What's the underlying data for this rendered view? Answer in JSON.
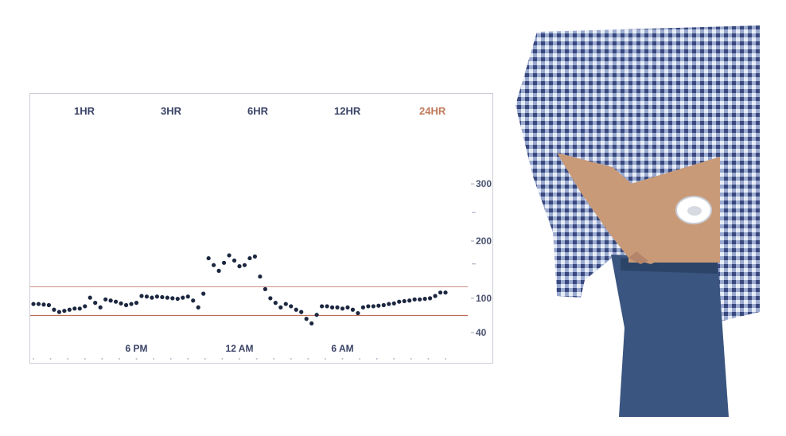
{
  "tabs": [
    "1HR",
    "3HR",
    "6HR",
    "12HR",
    "24HR"
  ],
  "active_tab": "24HR",
  "chart_data": {
    "type": "scatter",
    "title": "",
    "xlabel": "",
    "ylabel": "",
    "x_unit": "hours since 12 PM",
    "xlim": [
      0,
      24
    ],
    "ylim": [
      40,
      360
    ],
    "yticks": [
      40,
      100,
      200,
      300
    ],
    "xticks": [
      {
        "value": 6,
        "label": "6 PM"
      },
      {
        "value": 12,
        "label": "12 AM"
      },
      {
        "value": 18,
        "label": "6 AM"
      }
    ],
    "target_range": [
      70,
      120
    ],
    "target_range_color": "#b5533c",
    "point_color": "#1c2740",
    "x": [
      0.0,
      0.3,
      0.6,
      0.9,
      1.2,
      1.5,
      1.8,
      2.1,
      2.4,
      2.7,
      3.0,
      3.3,
      3.6,
      3.9,
      4.2,
      4.5,
      4.8,
      5.1,
      5.4,
      5.7,
      6.0,
      6.3,
      6.6,
      6.9,
      7.2,
      7.5,
      7.8,
      8.1,
      8.4,
      8.7,
      9.0,
      9.3,
      9.6,
      9.9,
      10.2,
      10.5,
      10.8,
      11.1,
      11.4,
      11.7,
      12.0,
      12.3,
      12.6,
      12.9,
      13.2,
      13.5,
      13.8,
      14.1,
      14.4,
      14.7,
      15.0,
      15.3,
      15.6,
      15.9,
      16.2,
      16.5,
      16.8,
      17.1,
      17.4,
      17.7,
      18.0,
      18.3,
      18.6,
      18.9,
      19.2,
      19.5,
      19.8,
      20.1,
      20.4,
      20.7,
      21.0,
      21.3,
      21.6,
      21.9,
      22.2,
      22.5,
      22.8,
      23.1,
      23.4,
      23.7,
      24.0
    ],
    "y": [
      90,
      90,
      89,
      88,
      80,
      76,
      78,
      80,
      82,
      82,
      86,
      101,
      92,
      84,
      98,
      96,
      94,
      91,
      88,
      90,
      92,
      104,
      103,
      101,
      103,
      102,
      101,
      100,
      99,
      101,
      103,
      96,
      84,
      108,
      170,
      158,
      148,
      162,
      175,
      166,
      156,
      158,
      170,
      173,
      138,
      116,
      100,
      92,
      84,
      90,
      86,
      80,
      76,
      64,
      56,
      71,
      86,
      86,
      84,
      84,
      82,
      84,
      80,
      74,
      84,
      86,
      86,
      87,
      88,
      90,
      91,
      94,
      95,
      96,
      98,
      98,
      99,
      100,
      104,
      110,
      110
    ]
  }
}
